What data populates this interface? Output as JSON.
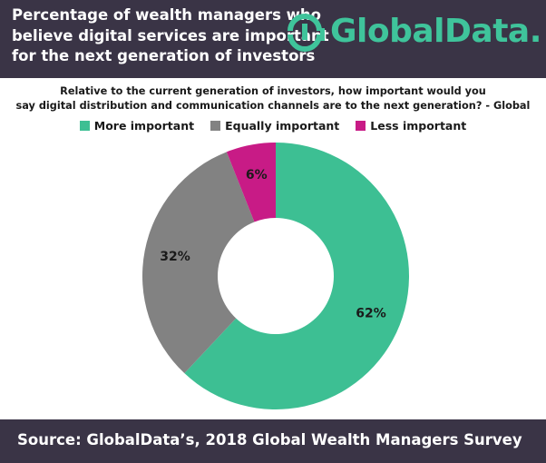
{
  "header": {
    "title_lines": [
      "Percentage of wealth managers who",
      "believe digital services are important",
      "for the next generation of investors"
    ],
    "logo_text": "GlobalData."
  },
  "subtitle_lines": [
    "Relative to the current generation of investors, how important would you",
    "say digital distribution and communication channels are to the next generation? - Global"
  ],
  "colors": {
    "header_bg": "#3a3446",
    "brand": "#3fc49b",
    "more_important": "#3dbf93",
    "equally_important": "#828282",
    "less_important": "#c81b86"
  },
  "chart_data": {
    "type": "pie",
    "donut": true,
    "categories": [
      "More important",
      "Equally important",
      "Less important"
    ],
    "values": [
      62,
      32,
      6
    ],
    "labels": [
      "62%",
      "32%",
      "6%"
    ],
    "legend_position": "top"
  },
  "footer": {
    "source": "Source:  GlobalData’s, 2018 Global Wealth Managers Survey"
  }
}
